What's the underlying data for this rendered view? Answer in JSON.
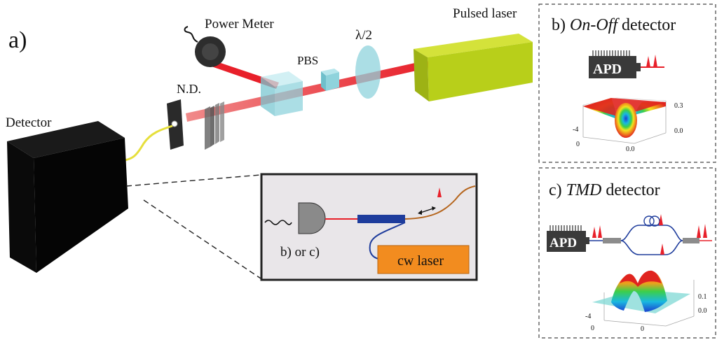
{
  "panel_a": {
    "label": "a)",
    "pulsed_laser": "Pulsed laser",
    "power_meter": "Power Meter",
    "half_wave": "λ/2",
    "pbs": "PBS",
    "nd": "N.D.",
    "detector": "Detector",
    "inset": {
      "choice": "b) or c)",
      "cw_laser": "cw laser"
    }
  },
  "panel_b": {
    "prefix": "b) ",
    "name": "On-Off",
    "suffix": " detector",
    "apd": "APD",
    "plot": {
      "z_ticks": [
        "0.3",
        "0.0"
      ],
      "x_ticks": [
        "-4",
        "0"
      ],
      "y_ticks": [
        "0.0"
      ]
    }
  },
  "panel_c": {
    "prefix": "c)  ",
    "name": "TMD",
    "suffix": " detector",
    "apd": "APD",
    "plot": {
      "z_ticks": [
        "0.1",
        "0.0"
      ],
      "x_ticks": [
        "-4",
        "0"
      ],
      "y_ticks": [
        "0"
      ]
    }
  },
  "colors": {
    "beam": "#e8202a",
    "pulsed_laser": "#b8cf1a",
    "optic": "#8fd3dc",
    "cw_laser": "#f28c1f",
    "fiber_brown": "#b5651d",
    "fiber_blue": "#1e3c9c",
    "apd": "#3a3a3a"
  }
}
